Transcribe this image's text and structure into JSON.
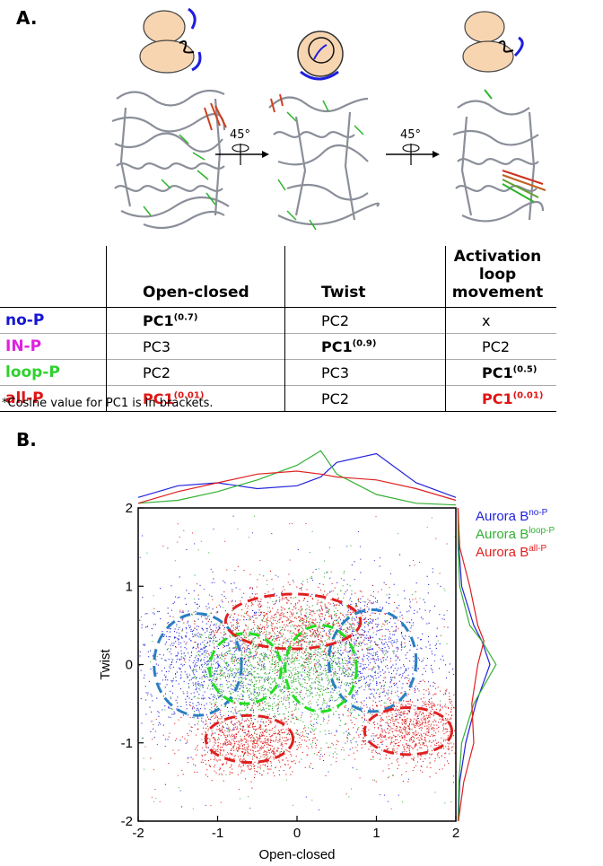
{
  "panelA": {
    "label": "A.",
    "rotation1": "45°",
    "rotation2": "45°",
    "table": {
      "headers": [
        "",
        "Open-closed",
        "Twist",
        "Activation loop movement"
      ],
      "header3_line1": "Activation loop",
      "header3_line2": "movement",
      "rows": [
        {
          "label": "no-P",
          "label_color": "#1515d6",
          "open_closed": "PC1",
          "oc_sup": "(0.7)",
          "twist": "PC2",
          "twist_sup": "",
          "activation": "x",
          "act_sup": ""
        },
        {
          "label": "IN-P",
          "label_color": "#e020e0",
          "open_closed": "PC3",
          "oc_sup": "",
          "twist": "PC1",
          "twist_sup": "(0.9)",
          "activation": "PC2",
          "act_sup": ""
        },
        {
          "label": "loop-P",
          "label_color": "#2ed12e",
          "open_closed": "PC2",
          "oc_sup": "",
          "twist": "PC3",
          "twist_sup": "",
          "activation": "PC1",
          "act_sup": "(0.5)"
        },
        {
          "label": "all-P",
          "label_color": "#e01414",
          "open_closed": "PC1",
          "oc_sup": "(0.01)",
          "twist": "PC2",
          "twist_sup": "",
          "activation": "PC1",
          "act_sup": "(0.01)"
        }
      ]
    },
    "footnote": "*Cosine value for PC1 is in brackets."
  },
  "panelB": {
    "label": "B.",
    "legend": [
      {
        "base": "Aurora B",
        "sup": "no-P",
        "color": "#2222dd"
      },
      {
        "base": "Aurora B",
        "sup": "loop-P",
        "color": "#33b033"
      },
      {
        "base": "Aurora B",
        "sup": "all-P",
        "color": "#e02020"
      }
    ]
  },
  "chart_data": {
    "type": "scatter",
    "xlabel": "Open-closed",
    "ylabel": "Twist",
    "xlim": [
      -2,
      2
    ],
    "ylim": [
      -2,
      2
    ],
    "x_ticks": [
      "-2",
      "-1",
      "0",
      "1",
      "2"
    ],
    "y_ticks": [
      "-2",
      "-1",
      "0",
      "1",
      "2"
    ],
    "series": [
      {
        "name": "Aurora B no-P",
        "color": "#2222dd",
        "clusters": [
          {
            "cx": -1.2,
            "cy": 0.0,
            "sx": 0.45,
            "sy": 0.45
          },
          {
            "cx": 0.9,
            "cy": 0.1,
            "sx": 0.45,
            "sy": 0.45
          }
        ]
      },
      {
        "name": "Aurora B loop-P",
        "color": "#33b033",
        "clusters": [
          {
            "cx": -0.6,
            "cy": -0.1,
            "sx": 0.35,
            "sy": 0.35
          },
          {
            "cx": 0.3,
            "cy": -0.05,
            "sx": 0.35,
            "sy": 0.45
          }
        ]
      },
      {
        "name": "Aurora B all-P",
        "color": "#e02020",
        "clusters": [
          {
            "cx": 0.0,
            "cy": 0.5,
            "sx": 0.6,
            "sy": 0.25
          },
          {
            "cx": -0.6,
            "cy": -1.0,
            "sx": 0.4,
            "sy": 0.2
          },
          {
            "cx": 1.45,
            "cy": -0.8,
            "sx": 0.35,
            "sy": 0.25
          }
        ]
      }
    ],
    "ellipses": [
      {
        "series": "no-P",
        "color": "#2a7fc0",
        "cx": -1.25,
        "cy": 0.0,
        "rx": 0.55,
        "ry": 0.65
      },
      {
        "series": "no-P",
        "color": "#2a7fc0",
        "cx": 0.95,
        "cy": 0.05,
        "rx": 0.55,
        "ry": 0.65
      },
      {
        "series": "loop-P",
        "color": "#22dd22",
        "cx": -0.65,
        "cy": -0.05,
        "rx": 0.45,
        "ry": 0.45
      },
      {
        "series": "loop-P",
        "color": "#22dd22",
        "cx": 0.3,
        "cy": -0.05,
        "rx": 0.45,
        "ry": 0.55
      },
      {
        "series": "all-P",
        "color": "#e02020",
        "cx": -0.05,
        "cy": 0.55,
        "rx": 0.85,
        "ry": 0.35
      },
      {
        "series": "all-P",
        "color": "#e02020",
        "cx": -0.6,
        "cy": -0.95,
        "rx": 0.55,
        "ry": 0.3
      },
      {
        "series": "all-P",
        "color": "#e02020",
        "cx": 1.4,
        "cy": -0.85,
        "rx": 0.55,
        "ry": 0.3
      }
    ],
    "top_histogram": {
      "x": [
        -2.0,
        -1.5,
        -1.0,
        -0.5,
        0.0,
        0.3,
        0.5,
        1.0,
        1.5,
        2.0
      ],
      "no-P": [
        0.15,
        0.35,
        0.4,
        0.3,
        0.35,
        0.5,
        0.75,
        0.9,
        0.4,
        0.15
      ],
      "loop-P": [
        0.05,
        0.1,
        0.25,
        0.45,
        0.7,
        0.95,
        0.55,
        0.2,
        0.05,
        0.02
      ],
      "all-P": [
        0.05,
        0.25,
        0.4,
        0.55,
        0.6,
        0.55,
        0.5,
        0.45,
        0.3,
        0.1
      ]
    },
    "right_histogram": {
      "y": [
        -2.0,
        -1.5,
        -1.0,
        -0.5,
        0.0,
        0.3,
        0.5,
        1.0,
        1.5,
        2.0
      ],
      "no-P": [
        0.02,
        0.05,
        0.2,
        0.45,
        0.8,
        0.6,
        0.4,
        0.1,
        0.03,
        0.01
      ],
      "loop-P": [
        0.01,
        0.03,
        0.1,
        0.4,
        0.95,
        0.6,
        0.3,
        0.05,
        0.01,
        0.01
      ],
      "all-P": [
        0.02,
        0.15,
        0.4,
        0.35,
        0.5,
        0.65,
        0.5,
        0.3,
        0.05,
        0.01
      ]
    }
  }
}
